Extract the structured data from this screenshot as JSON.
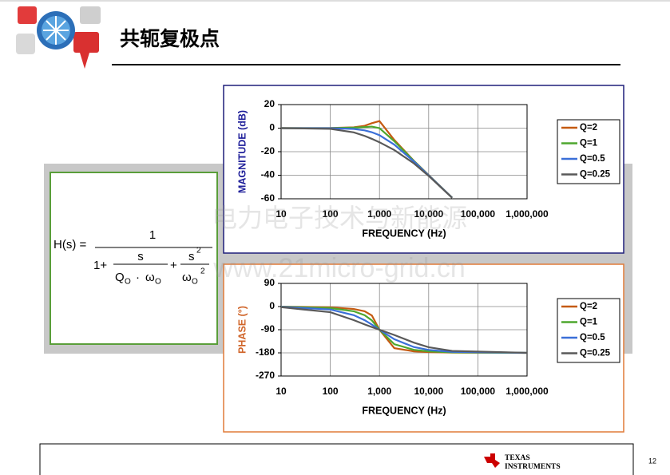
{
  "slide_title": "共轭复极点",
  "watermark": [
    "电力电子技术与新能源",
    "www.21micro-grid.cn"
  ],
  "formula": {
    "lhs": "H(s) =",
    "numerator": "1",
    "one_plus": "1+",
    "term1_num": "s",
    "term1_den": [
      "Q",
      "O",
      "·",
      "ω",
      "O"
    ],
    "plus": "+",
    "term2_num": [
      "s",
      "2"
    ],
    "term2_den": [
      "ω",
      "O",
      "2"
    ]
  },
  "footer": {
    "logo": [
      "TEXAS",
      "INSTRUMENTS"
    ],
    "page": "12"
  },
  "chart_data": [
    {
      "type": "line",
      "xlabel": "FREQUENCY (Hz)",
      "ylabel": "MAGNITUDE (dB)",
      "xscale": "log",
      "grid": true,
      "legend": "right",
      "xlim": [
        10,
        1000000
      ],
      "ylim": [
        -60,
        20
      ],
      "xticks": [
        10,
        100,
        {
          "value": 1000,
          "label": "1,000"
        },
        {
          "value": 10000,
          "label": "10,000"
        },
        {
          "value": 100000,
          "label": "100,000"
        },
        {
          "value": 1000000,
          "label": "1,000,000"
        }
      ],
      "yticks": [
        -60,
        -40,
        -20,
        0,
        20
      ],
      "x": [
        10,
        100,
        300,
        500,
        700,
        1000,
        2000,
        5000,
        10000,
        30000
      ],
      "series": [
        {
          "name": "Q=2",
          "color": "#c55a11",
          "values": [
            0,
            0.1,
            0.7,
            2.0,
            4.2,
            6.0,
            -10.0,
            -27.7,
            -39.9,
            -59.1
          ]
        },
        {
          "name": "Q=1",
          "color": "#4ea72e",
          "values": [
            0,
            0,
            0.4,
            0.9,
            1.3,
            0,
            -11.1,
            -27.8,
            -40.0,
            -59.1
          ]
        },
        {
          "name": "Q=0.5",
          "color": "#3a6fd8",
          "values": [
            0,
            -0.1,
            -0.7,
            -1.9,
            -3.5,
            -6.0,
            -14.0,
            -28.3,
            -40.1,
            -59.1
          ]
        },
        {
          "name": "Q=0.25",
          "color": "#595959",
          "values": [
            0,
            -0.6,
            -3.6,
            -6.6,
            -9.1,
            -12.0,
            -18.6,
            -29.9,
            -40.6,
            -59.2
          ]
        }
      ]
    },
    {
      "type": "line",
      "xlabel": "FREQUENCY (Hz)",
      "ylabel": "PHASE (°)",
      "xscale": "log",
      "grid": true,
      "legend": "right",
      "xlim": [
        10,
        1000000
      ],
      "ylim": [
        -270,
        90
      ],
      "xticks": [
        10,
        100,
        {
          "value": 1000,
          "label": "1,000"
        },
        {
          "value": 10000,
          "label": "10,000"
        },
        {
          "value": 100000,
          "label": "100,000"
        },
        {
          "value": 1000000,
          "label": "1,000,000"
        }
      ],
      "yticks": [
        -270,
        -180,
        -90,
        0,
        90
      ],
      "x": [
        10,
        100,
        300,
        500,
        700,
        1000,
        2000,
        5000,
        10000,
        30000,
        1000000
      ],
      "series": [
        {
          "name": "Q=2",
          "color": "#c55a11",
          "values": [
            -0.3,
            -2.9,
            -9.4,
            -18.4,
            -34.5,
            -90,
            -161.6,
            -174.1,
            -177.1,
            -179.0,
            -180
          ]
        },
        {
          "name": "Q=1",
          "color": "#4ea72e",
          "values": [
            -0.6,
            -5.8,
            -18.3,
            -33.7,
            -53.9,
            -90,
            -146.3,
            -168.2,
            -174.2,
            -178.1,
            -180
          ]
        },
        {
          "name": "Q=0.5",
          "color": "#3a6fd8",
          "values": [
            -1.1,
            -11.4,
            -33.4,
            -53.1,
            -70.0,
            -90,
            -126.9,
            -157.4,
            -168.6,
            -176.2,
            -180
          ]
        },
        {
          "name": "Q=0.25",
          "color": "#595959",
          "values": [
            -2.3,
            -22.0,
            -52.8,
            -69.4,
            -79.7,
            -90,
            -110.6,
            -140.2,
            -158.0,
            -172.4,
            -179.8
          ]
        }
      ]
    }
  ]
}
